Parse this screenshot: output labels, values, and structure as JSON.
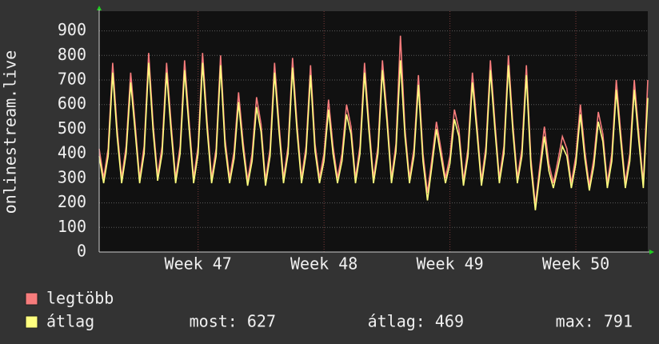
{
  "chart_data": {
    "type": "line",
    "y_label": "onlinestream.live",
    "x": [
      0,
      0.25,
      0.5,
      0.75,
      1,
      1.25,
      1.5,
      1.75,
      2,
      2.25,
      2.5,
      2.75,
      3,
      3.25,
      3.5,
      3.75,
      4,
      4.25,
      4.5,
      4.75,
      5,
      5.25,
      5.5,
      5.75,
      6,
      6.25,
      6.5,
      6.75,
      7,
      7.25,
      7.5,
      7.75,
      8,
      8.25,
      8.5,
      8.75,
      9,
      9.25,
      9.5,
      9.75,
      10,
      10.25,
      10.5,
      10.75,
      11,
      11.25,
      11.5,
      11.75,
      12,
      12.25,
      12.5,
      12.75,
      13,
      13.25,
      13.5,
      13.75,
      14,
      14.25,
      14.5,
      14.75,
      15,
      15.25,
      15.5,
      15.75,
      16,
      16.25,
      16.5,
      16.75,
      17,
      17.25,
      17.5,
      17.75,
      18,
      18.25,
      18.5,
      18.75,
      19,
      19.25,
      19.5,
      19.75,
      20,
      20.25,
      20.5,
      20.75,
      21,
      21.25,
      21.5,
      21.75,
      22,
      22.25,
      22.5,
      22.75,
      23,
      23.25,
      23.5,
      23.75,
      24,
      24.25,
      24.5,
      24.75,
      25,
      25.25,
      25.5,
      25.75,
      26,
      26.25,
      26.5,
      26.75,
      27,
      27.25,
      27.5,
      27.75,
      28,
      28.25,
      28.5,
      28.75,
      29,
      29.25,
      29.5,
      29.75,
      30,
      30.25,
      30.5
    ],
    "xlim": [
      0,
      30.5
    ],
    "xticks": [
      {
        "value": 5.5,
        "label": "Week 47"
      },
      {
        "value": 12.5,
        "label": "Week 48"
      },
      {
        "value": 19.5,
        "label": "Week 49"
      },
      {
        "value": 26.5,
        "label": "Week 50"
      }
    ],
    "ylim": [
      0,
      980
    ],
    "yticks": [
      0,
      100,
      200,
      300,
      400,
      500,
      600,
      700,
      800,
      900
    ],
    "grid": true,
    "series": [
      {
        "name": "legtöbb",
        "color": "#f77c7c",
        "values": [
          420,
          300,
          420,
          770,
          500,
          300,
          430,
          730,
          520,
          300,
          430,
          810,
          520,
          310,
          430,
          770,
          520,
          300,
          430,
          780,
          530,
          300,
          430,
          810,
          530,
          300,
          420,
          800,
          460,
          300,
          410,
          650,
          450,
          290,
          400,
          630,
          520,
          290,
          420,
          770,
          520,
          300,
          430,
          790,
          520,
          300,
          430,
          760,
          440,
          300,
          400,
          620,
          430,
          300,
          400,
          600,
          510,
          300,
          430,
          770,
          520,
          300,
          430,
          780,
          560,
          300,
          440,
          880,
          500,
          300,
          420,
          720,
          400,
          240,
          380,
          530,
          420,
          300,
          390,
          580,
          500,
          290,
          420,
          730,
          520,
          290,
          430,
          780,
          530,
          300,
          430,
          800,
          520,
          300,
          420,
          760,
          380,
          190,
          350,
          510,
          360,
          280,
          370,
          470,
          420,
          280,
          390,
          600,
          410,
          270,
          380,
          570,
          480,
          280,
          400,
          700,
          480,
          280,
          400,
          700,
          480,
          280,
          700
        ]
      },
      {
        "name": "átlag",
        "color": "#ffff7f",
        "values": [
          390,
          280,
          390,
          730,
          470,
          280,
          400,
          690,
          490,
          280,
          400,
          770,
          490,
          290,
          400,
          730,
          490,
          280,
          400,
          740,
          500,
          280,
          400,
          770,
          500,
          280,
          390,
          760,
          430,
          280,
          380,
          610,
          420,
          270,
          370,
          590,
          490,
          270,
          390,
          730,
          490,
          280,
          400,
          750,
          490,
          280,
          400,
          720,
          410,
          280,
          370,
          580,
          400,
          280,
          370,
          560,
          480,
          280,
          400,
          730,
          490,
          280,
          400,
          740,
          530,
          280,
          410,
          780,
          470,
          280,
          390,
          680,
          370,
          210,
          350,
          500,
          390,
          280,
          360,
          540,
          470,
          270,
          390,
          690,
          490,
          270,
          400,
          740,
          500,
          280,
          400,
          760,
          490,
          280,
          390,
          720,
          350,
          170,
          320,
          470,
          330,
          260,
          340,
          430,
          390,
          260,
          360,
          560,
          380,
          250,
          350,
          530,
          450,
          260,
          370,
          660,
          450,
          260,
          370,
          660,
          450,
          260,
          627
        ],
        "stats": [
          "most: 627",
          "átlag: 469",
          "max: 791"
        ]
      }
    ]
  }
}
